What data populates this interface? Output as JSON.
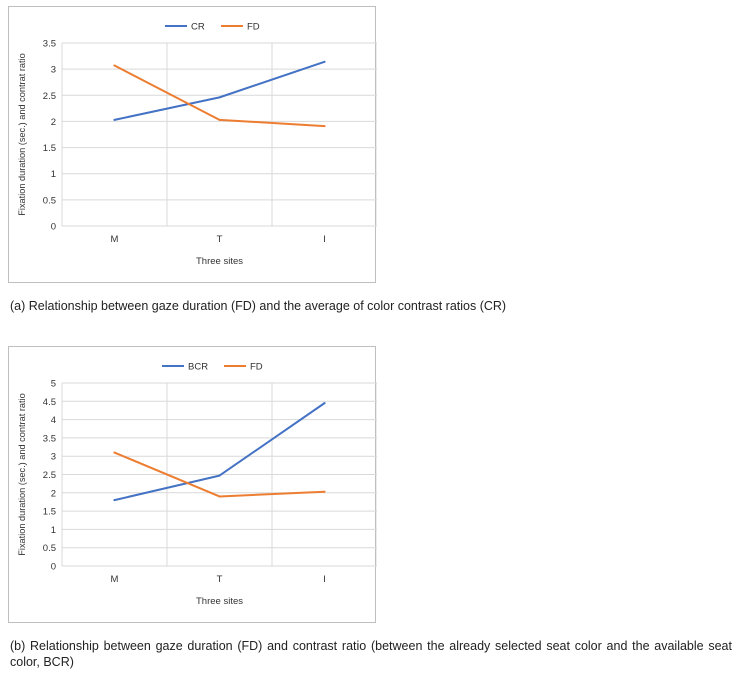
{
  "colors": {
    "series_1": "#4472C4",
    "series_2": "#ED7D31",
    "grid": "#d9d9d9",
    "axis_text": "#333333"
  },
  "chart_data": [
    {
      "type": "line",
      "categories": [
        "M",
        "T",
        "I"
      ],
      "series": [
        {
          "name": "CR",
          "values": [
            2.03,
            2.46,
            3.14
          ]
        },
        {
          "name": "FD",
          "values": [
            3.07,
            2.03,
            1.91
          ]
        }
      ],
      "title": "",
      "xlabel": "Three sites",
      "ylabel": "Fixation duration (sec.) and contrat ratio",
      "ylim": [
        0,
        3.5
      ],
      "yticks": [
        "0",
        "0.5",
        "1",
        "1.5",
        "2",
        "2.5",
        "3",
        "3.5"
      ],
      "grid": true,
      "legend": "top-center"
    },
    {
      "type": "line",
      "categories": [
        "M",
        "T",
        "I"
      ],
      "series": [
        {
          "name": "BCR",
          "values": [
            1.8,
            2.47,
            4.45
          ]
        },
        {
          "name": "FD",
          "values": [
            3.1,
            1.9,
            2.03
          ]
        }
      ],
      "title": "",
      "xlabel": "Three sites",
      "ylabel": "Fixation duration (sec.) and contrat ratio",
      "ylim": [
        0,
        5
      ],
      "yticks": [
        "0",
        "0.5",
        "1",
        "1.5",
        "2",
        "2.5",
        "3",
        "3.5",
        "4",
        "4.5",
        "5"
      ],
      "grid": true,
      "legend": "top-center"
    }
  ],
  "captions": {
    "a": "(a) Relationship between gaze duration (FD) and the average of color contrast ratios (CR)",
    "b": "(b) Relationship between gaze duration (FD) and contrast ratio (between the already selected seat color and the available seat color, BCR)"
  }
}
